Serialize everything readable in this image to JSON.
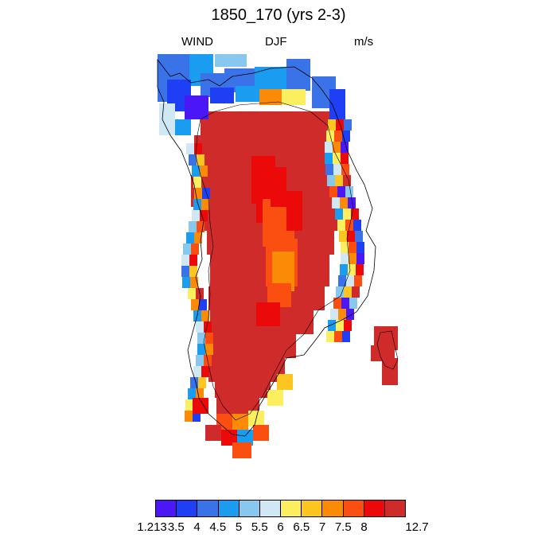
{
  "header": {
    "title": "1850_170 (yrs 2-3)",
    "variable": "WIND",
    "season": "DJF",
    "units": "m/s"
  },
  "colorbar": {
    "colors": [
      "#4b17f5",
      "#1f3ff5",
      "#3a72e8",
      "#1a9cf0",
      "#88c8ee",
      "#cfe8f4",
      "#fbef5f",
      "#fdc51f",
      "#fb8a06",
      "#fa4f10",
      "#ec0909",
      "#d02b2b"
    ],
    "labels": [
      "1.213",
      "3.5",
      "4",
      "4.5",
      "5",
      "5.5",
      "6",
      "6.5",
      "7",
      "7.5",
      "8",
      "12.7"
    ]
  }
}
